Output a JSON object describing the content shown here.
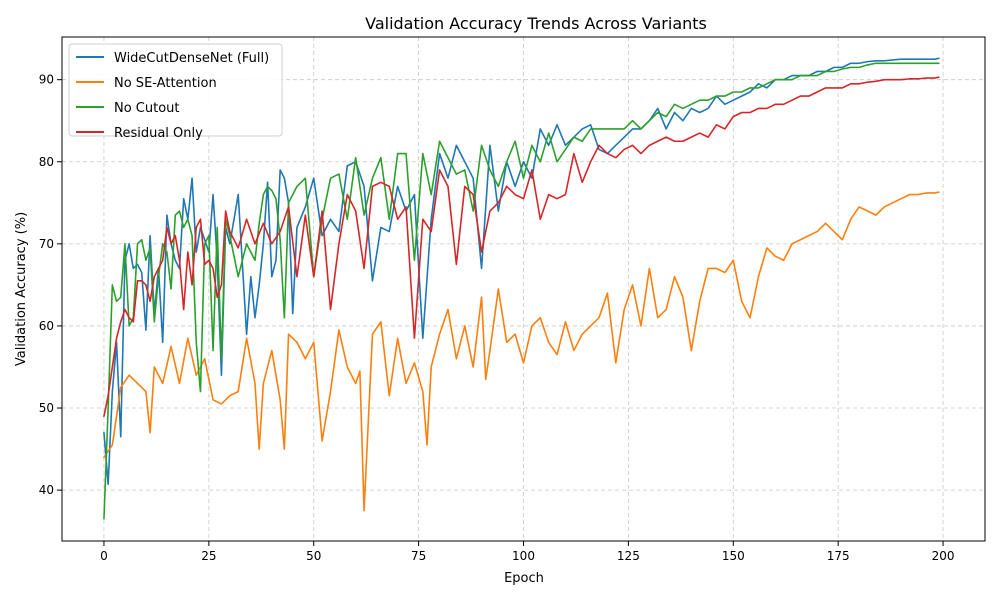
{
  "chart_data": {
    "type": "line",
    "title": "Validation Accuracy Trends Across Variants",
    "xlabel": "Epoch",
    "ylabel": "Validation Accuracy (%)",
    "xlim": [
      -10,
      210
    ],
    "ylim": [
      33.8,
      95.2
    ],
    "xticks": [
      0,
      25,
      50,
      75,
      100,
      125,
      150,
      175,
      200
    ],
    "yticks": [
      40,
      50,
      60,
      70,
      80,
      90
    ],
    "grid": true,
    "legend_position": "top-left",
    "series": [
      {
        "name": "WideCutDenseNet (Full)",
        "color": "#1f77b4",
        "x": [
          0,
          1,
          2,
          3,
          4,
          5,
          6,
          7,
          8,
          9,
          10,
          11,
          12,
          13,
          14,
          15,
          16,
          17,
          18,
          19,
          20,
          21,
          22,
          23,
          24,
          25,
          26,
          27,
          28,
          29,
          30,
          32,
          34,
          35,
          36,
          37,
          38,
          39,
          40,
          41,
          42,
          43,
          44,
          45,
          46,
          48,
          50,
          52,
          54,
          56,
          58,
          60,
          62,
          64,
          66,
          68,
          70,
          72,
          74,
          76,
          78,
          80,
          82,
          84,
          86,
          88,
          90,
          92,
          94,
          96,
          98,
          100,
          102,
          104,
          106,
          108,
          110,
          112,
          114,
          116,
          118,
          120,
          122,
          124,
          126,
          128,
          130,
          132,
          134,
          136,
          138,
          140,
          142,
          144,
          146,
          148,
          150,
          152,
          154,
          156,
          158,
          160,
          162,
          164,
          166,
          168,
          170,
          172,
          174,
          176,
          178,
          180,
          182,
          184,
          186,
          188,
          190,
          192,
          194,
          196,
          198,
          199
        ],
        "values": [
          47.0,
          40.7,
          52.0,
          58.0,
          46.5,
          68.0,
          70.0,
          67.0,
          67.5,
          66.5,
          59.5,
          71.0,
          61.5,
          67.0,
          58.0,
          73.5,
          70.0,
          68.0,
          67.0,
          75.5,
          73.0,
          78.0,
          69.0,
          72.0,
          70.5,
          69.0,
          76.0,
          68.0,
          54.0,
          72.0,
          70.0,
          76.0,
          59.0,
          66.0,
          61.0,
          65.0,
          70.0,
          77.5,
          66.0,
          68.0,
          79.0,
          78.0,
          75.0,
          61.5,
          72.0,
          74.5,
          78.0,
          71.0,
          73.0,
          71.5,
          79.5,
          80.0,
          77.0,
          65.5,
          72.0,
          71.5,
          77.0,
          74.0,
          76.0,
          58.5,
          73.0,
          81.0,
          78.0,
          82.0,
          80.0,
          78.0,
          67.0,
          82.0,
          74.0,
          80.0,
          77.0,
          80.0,
          78.0,
          84.0,
          82.0,
          84.5,
          82.0,
          83.0,
          84.0,
          84.5,
          81.5,
          81.0,
          82.0,
          83.0,
          84.0,
          84.0,
          85.0,
          86.5,
          84.0,
          86.0,
          85.0,
          86.5,
          86.0,
          86.5,
          88.0,
          87.0,
          87.5,
          88.0,
          88.5,
          89.5,
          89.0,
          90.0,
          90.0,
          90.5,
          90.5,
          90.5,
          91.0,
          91.0,
          91.5,
          91.5,
          92.0,
          92.0,
          92.2,
          92.3,
          92.3,
          92.4,
          92.5,
          92.5,
          92.5,
          92.5,
          92.5,
          92.6
        ]
      },
      {
        "name": "No SE-Attention",
        "color": "#ff7f0e",
        "x": [
          0,
          2,
          4,
          6,
          8,
          10,
          11,
          12,
          14,
          16,
          18,
          20,
          22,
          24,
          26,
          28,
          30,
          32,
          34,
          36,
          37,
          38,
          40,
          42,
          43,
          44,
          46,
          48,
          50,
          52,
          54,
          56,
          58,
          60,
          61,
          62,
          64,
          66,
          68,
          70,
          72,
          74,
          76,
          77,
          78,
          80,
          82,
          84,
          86,
          88,
          90,
          91,
          92,
          94,
          96,
          98,
          100,
          102,
          104,
          106,
          108,
          110,
          112,
          114,
          116,
          118,
          120,
          122,
          124,
          126,
          128,
          130,
          132,
          134,
          136,
          138,
          140,
          142,
          144,
          146,
          148,
          150,
          152,
          154,
          156,
          158,
          160,
          162,
          164,
          166,
          168,
          170,
          172,
          174,
          176,
          178,
          180,
          182,
          184,
          186,
          188,
          190,
          192,
          194,
          196,
          198,
          199
        ],
        "values": [
          44.0,
          45.5,
          52.5,
          54.0,
          53.0,
          52.0,
          47.0,
          55.0,
          53.0,
          57.5,
          53.0,
          58.5,
          54.0,
          56.0,
          51.0,
          50.5,
          51.5,
          52.0,
          58.5,
          53.0,
          45.0,
          53.0,
          57.0,
          51.0,
          45.0,
          59.0,
          58.0,
          56.0,
          58.0,
          46.0,
          52.0,
          59.5,
          55.0,
          53.0,
          54.5,
          37.5,
          59.0,
          60.5,
          51.5,
          58.5,
          53.0,
          55.5,
          52.0,
          45.5,
          55.0,
          59.0,
          62.0,
          56.0,
          60.0,
          55.0,
          63.5,
          53.5,
          57.0,
          64.5,
          58.0,
          59.0,
          55.5,
          60.0,
          61.0,
          58.0,
          56.5,
          60.5,
          57.0,
          59.0,
          60.0,
          61.0,
          64.0,
          55.5,
          62.0,
          65.0,
          60.0,
          67.0,
          61.0,
          62.0,
          66.0,
          63.5,
          57.0,
          63.0,
          67.0,
          67.0,
          66.5,
          68.0,
          63.0,
          61.0,
          66.0,
          69.5,
          68.5,
          68.0,
          70.0,
          70.5,
          71.0,
          71.5,
          72.5,
          71.5,
          70.5,
          73.0,
          74.5,
          74.0,
          73.5,
          74.5,
          75.0,
          75.5,
          76.0,
          76.0,
          76.2,
          76.2,
          76.3
        ]
      },
      {
        "name": "No Cutout",
        "color": "#2ca02c",
        "x": [
          0,
          1,
          2,
          3,
          4,
          5,
          6,
          7,
          8,
          9,
          10,
          11,
          12,
          13,
          14,
          15,
          16,
          17,
          18,
          19,
          20,
          21,
          22,
          23,
          24,
          25,
          26,
          27,
          28,
          29,
          30,
          32,
          34,
          36,
          37,
          38,
          39,
          40,
          41,
          42,
          43,
          44,
          46,
          48,
          50,
          52,
          54,
          56,
          58,
          60,
          62,
          64,
          66,
          68,
          70,
          72,
          74,
          76,
          78,
          80,
          82,
          84,
          86,
          88,
          90,
          92,
          94,
          96,
          98,
          100,
          102,
          104,
          106,
          108,
          110,
          112,
          114,
          116,
          118,
          120,
          122,
          124,
          126,
          128,
          130,
          132,
          134,
          136,
          138,
          140,
          142,
          144,
          146,
          148,
          150,
          152,
          154,
          156,
          158,
          160,
          162,
          164,
          166,
          168,
          170,
          172,
          174,
          176,
          178,
          180,
          182,
          184,
          186,
          188,
          190,
          192,
          194,
          196,
          198,
          199
        ],
        "values": [
          36.5,
          50.0,
          65.0,
          63.0,
          63.5,
          70.0,
          60.0,
          61.0,
          70.0,
          70.5,
          68.0,
          69.5,
          60.5,
          66.0,
          70.0,
          69.0,
          64.5,
          73.5,
          74.0,
          72.0,
          73.0,
          71.0,
          58.0,
          52.0,
          70.0,
          71.0,
          57.0,
          72.0,
          56.0,
          73.0,
          71.0,
          66.0,
          70.0,
          68.0,
          72.5,
          76.0,
          77.0,
          76.5,
          75.5,
          70.5,
          61.0,
          75.0,
          77.0,
          78.0,
          66.0,
          73.0,
          78.0,
          78.5,
          73.0,
          80.5,
          73.5,
          78.0,
          80.5,
          73.0,
          81.0,
          81.0,
          68.0,
          81.0,
          76.0,
          82.5,
          80.5,
          78.5,
          79.0,
          74.0,
          82.0,
          79.0,
          77.0,
          80.0,
          82.5,
          78.0,
          82.0,
          80.0,
          83.5,
          80.0,
          81.5,
          83.0,
          82.5,
          84.0,
          84.0,
          84.0,
          84.0,
          84.0,
          85.0,
          84.0,
          85.0,
          86.0,
          85.5,
          87.0,
          86.5,
          87.0,
          87.5,
          87.5,
          88.0,
          88.0,
          88.5,
          88.5,
          89.0,
          89.0,
          89.5,
          90.0,
          90.0,
          90.0,
          90.5,
          90.5,
          90.5,
          91.0,
          91.0,
          91.3,
          91.5,
          91.5,
          91.8,
          92.0,
          92.0,
          92.0,
          92.0,
          92.0,
          92.0,
          92.0,
          92.0,
          92.0
        ]
      },
      {
        "name": "Residual Only",
        "color": "#d62728",
        "x": [
          0,
          1,
          2,
          3,
          4,
          5,
          6,
          7,
          8,
          9,
          10,
          11,
          12,
          13,
          14,
          15,
          16,
          17,
          18,
          19,
          20,
          21,
          22,
          23,
          24,
          25,
          26,
          27,
          28,
          29,
          30,
          32,
          34,
          36,
          38,
          40,
          42,
          44,
          46,
          48,
          50,
          52,
          54,
          56,
          58,
          60,
          62,
          64,
          66,
          68,
          70,
          72,
          74,
          76,
          78,
          80,
          82,
          84,
          86,
          88,
          90,
          92,
          94,
          96,
          98,
          100,
          102,
          104,
          106,
          108,
          110,
          112,
          114,
          116,
          118,
          120,
          122,
          124,
          126,
          128,
          130,
          132,
          134,
          136,
          138,
          140,
          142,
          144,
          146,
          148,
          150,
          152,
          154,
          156,
          158,
          160,
          162,
          164,
          166,
          168,
          170,
          172,
          174,
          176,
          178,
          180,
          182,
          184,
          186,
          188,
          190,
          192,
          194,
          196,
          198,
          199
        ],
        "values": [
          49.0,
          51.5,
          55.0,
          58.5,
          60.5,
          62.0,
          61.0,
          60.5,
          65.5,
          65.5,
          65.0,
          63.0,
          66.0,
          67.0,
          68.0,
          72.0,
          70.0,
          71.0,
          68.0,
          62.0,
          69.0,
          65.0,
          72.0,
          73.0,
          67.5,
          68.0,
          67.0,
          63.5,
          65.0,
          74.0,
          71.5,
          69.5,
          73.0,
          70.0,
          72.5,
          70.0,
          71.5,
          74.5,
          66.0,
          73.5,
          66.0,
          74.0,
          62.0,
          70.0,
          76.0,
          74.0,
          67.0,
          77.0,
          77.5,
          77.0,
          73.0,
          74.5,
          58.5,
          73.0,
          71.5,
          79.0,
          77.0,
          67.5,
          77.0,
          76.0,
          69.0,
          74.0,
          75.0,
          77.0,
          76.0,
          75.5,
          79.0,
          73.0,
          76.0,
          75.5,
          76.0,
          81.0,
          77.5,
          80.0,
          82.0,
          81.0,
          80.5,
          81.5,
          82.0,
          81.0,
          82.0,
          82.5,
          83.0,
          82.5,
          82.5,
          83.0,
          83.5,
          83.0,
          84.5,
          84.0,
          85.5,
          86.0,
          86.0,
          86.5,
          86.5,
          87.0,
          87.0,
          87.5,
          88.0,
          88.0,
          88.5,
          89.0,
          89.0,
          89.0,
          89.5,
          89.5,
          89.7,
          89.8,
          90.0,
          90.0,
          90.0,
          90.1,
          90.1,
          90.2,
          90.2,
          90.3
        ]
      }
    ]
  }
}
